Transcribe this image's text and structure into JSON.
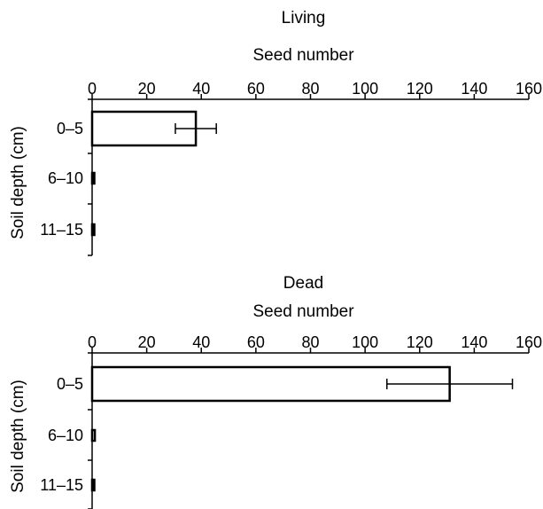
{
  "chart_data": [
    {
      "type": "bar",
      "orientation": "horizontal",
      "title": "Living",
      "xlabel": "Seed number",
      "ylabel": "Soil depth (cm)",
      "xlim": [
        0,
        160
      ],
      "xticks": [
        0,
        20,
        40,
        60,
        80,
        100,
        120,
        140,
        160
      ],
      "x_axis_position": "top",
      "categories": [
        "0–5",
        "6–10",
        "11–15"
      ],
      "values": [
        38,
        0.5,
        0.3
      ],
      "error": [
        7.5,
        0,
        0
      ],
      "grid": false,
      "legend": "none"
    },
    {
      "type": "bar",
      "orientation": "horizontal",
      "title": "Dead",
      "xlabel": "Seed number",
      "ylabel": "Soil depth (cm)",
      "xlim": [
        0,
        160
      ],
      "xticks": [
        0,
        20,
        40,
        60,
        80,
        100,
        120,
        140,
        160
      ],
      "x_axis_position": "top",
      "categories": [
        "0–5",
        "6–10",
        "11–15"
      ],
      "values": [
        131,
        1,
        0.5
      ],
      "error": [
        23,
        0,
        0
      ],
      "grid": false,
      "legend": "none"
    }
  ]
}
